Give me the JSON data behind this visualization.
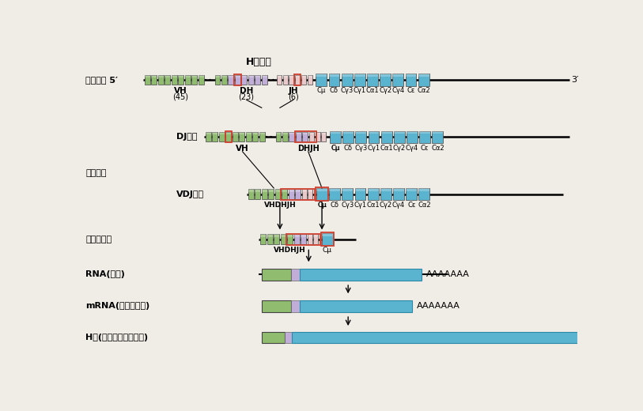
{
  "bg_color": "#f0ece6",
  "green_color": "#8fbc6e",
  "blue_color": "#5ab4d0",
  "lavender_color": "#c0aed8",
  "pink_color": "#e8c8c8",
  "red_box_color": "#d04030",
  "title": "H链基因",
  "row1_label": "胚系基因 5′",
  "row2_label": "DJ重排",
  "row3a_label": "基因重排",
  "row3b_label": "VDJ重排",
  "row4_label": "功能性基因",
  "row5_label": "RNA(转录)",
  "row6_label": "mRNA(转录后加工)",
  "row7_label": "H链(翻译和翻译后修饰)",
  "three_prime": "3′",
  "poly_a": "AAAAAAA",
  "c_labels": [
    "Cμ",
    "Cδ",
    "Cγ3",
    "Cγ1",
    "Cα1",
    "Cγ2",
    "Cγ4",
    "Cε",
    "Cα2"
  ],
  "vh_label": "VH",
  "vh_count": "(45)",
  "dh_label": "DH",
  "dh_count": "(23)",
  "jh_label": "JH",
  "jh_count": "(6)",
  "dhjh_label": "DHJH",
  "vhdhjh_label": "VHDHJH",
  "cmu_label": "Cμ"
}
